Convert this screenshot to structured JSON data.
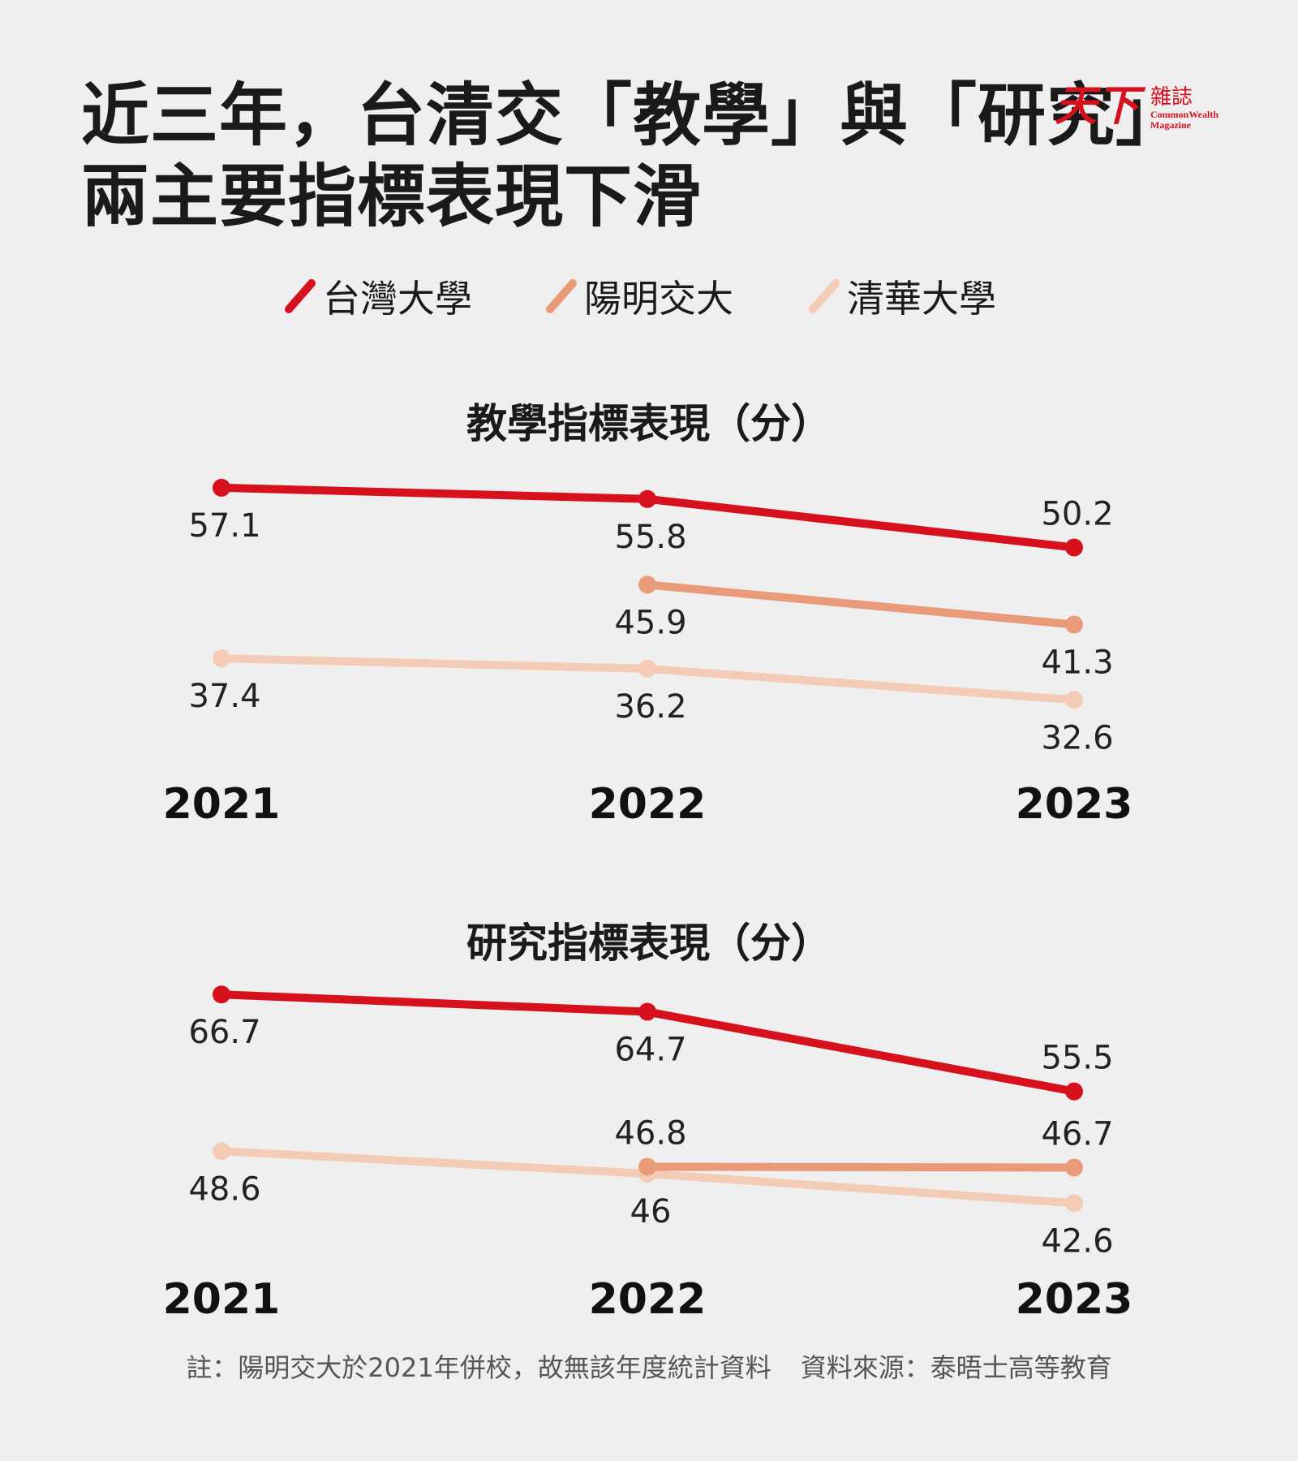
{
  "title": {
    "line1": "近三年，台清交「教學」與「研究」",
    "line2": "兩主要指標表現下滑"
  },
  "logo": {
    "mark": "天下",
    "name_zh": "雜誌",
    "name_en_1": "CommonWealth",
    "name_en_2": "Magazine",
    "color": "#d7101e"
  },
  "legend": [
    {
      "label": "台灣大學",
      "color": "#d7101e"
    },
    {
      "label": "陽明交大",
      "color": "#e99a78"
    },
    {
      "label": "清華大學",
      "color": "#f4cbb4"
    }
  ],
  "chart_data": [
    {
      "type": "line",
      "title": "教學指標表現（分）",
      "x": [
        "2021",
        "2022",
        "2023"
      ],
      "series": [
        {
          "name": "台灣大學",
          "color": "#d7101e",
          "values": [
            57.1,
            55.8,
            50.2
          ],
          "labels": [
            "57.1",
            "55.8",
            "50.2"
          ],
          "label_pos": [
            "below",
            "below",
            "above"
          ]
        },
        {
          "name": "陽明交大",
          "color": "#e99a78",
          "values": [
            null,
            45.9,
            41.3
          ],
          "labels": [
            null,
            "45.9",
            "41.3"
          ],
          "label_pos": [
            null,
            "below",
            "below"
          ]
        },
        {
          "name": "清華大學",
          "color": "#f4cbb4",
          "values": [
            37.4,
            36.2,
            32.6
          ],
          "labels": [
            "37.4",
            "36.2",
            "32.6"
          ],
          "label_pos": [
            "below",
            "below",
            "below"
          ]
        }
      ],
      "ylim": [
        30,
        60
      ],
      "grid": false,
      "legend": "top"
    },
    {
      "type": "line",
      "title": "研究指標表現（分）",
      "x": [
        "2021",
        "2022",
        "2023"
      ],
      "series": [
        {
          "name": "台灣大學",
          "color": "#d7101e",
          "values": [
            66.7,
            64.7,
            55.5
          ],
          "labels": [
            "66.7",
            "64.7",
            "55.5"
          ],
          "label_pos": [
            "below",
            "below",
            "above"
          ]
        },
        {
          "name": "陽明交大",
          "color": "#e99a78",
          "values": [
            null,
            46.8,
            46.7
          ],
          "labels": [
            null,
            "46.8",
            "46.7"
          ],
          "label_pos": [
            null,
            "above",
            "above"
          ]
        },
        {
          "name": "清華大學",
          "color": "#f4cbb4",
          "values": [
            48.6,
            46,
            42.6
          ],
          "labels": [
            "48.6",
            "46",
            "42.6"
          ],
          "label_pos": [
            "below",
            "below",
            "below"
          ]
        }
      ],
      "ylim": [
        40,
        70
      ],
      "grid": false,
      "legend": "top"
    }
  ],
  "footnote": {
    "note": "註：陽明交大於2021年併校，故無該年度統計資料",
    "source": "資料來源：泰晤士高等教育"
  }
}
